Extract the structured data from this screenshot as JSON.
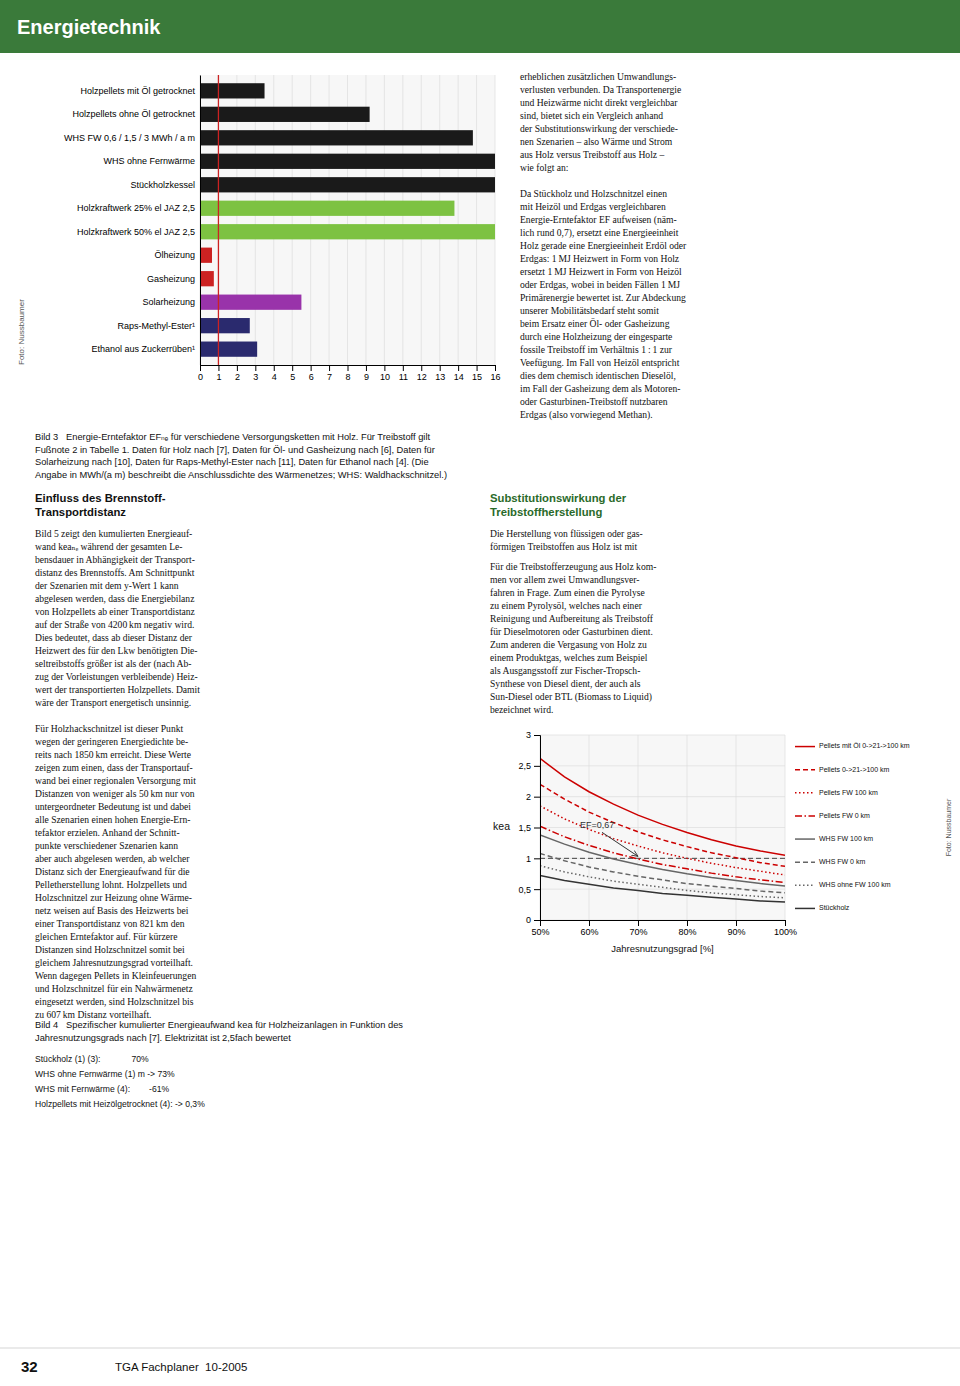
{
  "page": {
    "header": "Energietechnik",
    "page_number": "32",
    "journal": "TGA Fachplaner  10-2005",
    "right_text_top": "erheblichen zusätzlichen Umwandlungs-\nverlusten verbunden. Da Transportenergie\nund Heizwärme nicht direkt vergleichbar\nsind, bietet sich ein Vergleich anhand\nder Substitutionswirkung der verschiede-\nnen Szenarien – also Wärme und Strom\naus Holz versus Treibstoff aus Holz –\nwie folgt an:\n\nDa Stückholz und Holzschnitzel einen\nmit Heizöl und Erdgas vergleichbaren\nEnergie-Erntefaktor EF aufweisen (näm-\nlich rund 0,7), ersetzt eine Energieeinheit\nHolz gerade eine Energieeinheit Erdöl oder\nErdgas: 1 MJ Heizwert in Form von Holz\nersetzt 1 MJ Heizwert in Form von Heizöl\noder Erdgas, wobei in beiden Fällen 1 MJ\nPrimärenergie bewertet ist. Zur Abdeckung\nunserer Mobilitätsbedarf steht somit\nbeim Ersatz einer Öl- oder Gasheizung\ndurch eine Holzheizung der eingesparte\nfossile Treibstoff im Verhältnis 1 : 1 zur\nVeefügung. Im Fall von Heizöl entspricht\ndies dem chemisch identischen Dieselöl,\nim Fall der Gasheizung dem als Motoren-\noder Gasturbinen-Treibstoff nutzbaren\nErdgas (also vorwiegend Methan).",
    "left_col_heading": "Einfluss des Brennstoff-\nTransportdistanz",
    "left_col_text": "Bild 5 zeigt den kumulierten Energieauf-\nwand keaₙₑ während der gesamten Le-\nbensdauer in Abhängigkeit der Transport-\ndistanz des Brennstoffs. Am Schnittpunkt\nder Szenarien mit dem y-Wert 1 kann\nabgelesen werden, dass die Energiebilanz\nvon Holzpellets ab einer Transportdistanz\nauf der Straße von 4200 km negativ wird.\nDies bedeutet, dass ab dieser Distanz der\nHeizwert des für den Lkw benötigten Die-\nseltreibstoffs größer ist als der (nach Ab-\nzug der Vorleistungen verbleibende) Heiz-\nwert der transportierten Holzpellets. Damit\nwäre der Transport energetisch unsinnig.\n\nFür Holzhackschnitzel ist dieser Punkt\nwegen der geringeren Energiedichte be-\nreits nach 1850 km erreicht. Diese Werte\nzeigen zum einen, dass der Transportauf-\nwand bei einer regionalen Versorgung mit\nDistanzen von weniger als 50 km nur von\nuntergeordneter Bedeutung ist und dabei\nalle Szenarien einen hohen Energie-Ern-\ntefaktor erzielen. Anhand der Schnitt-\npunkte verschiedener Szenarien kann\naber auch abgelesen werden, ab welcher\nDistanz sich der Energieaufwand für die\nPelletherstellung lohnt. Holzpellets und\nHolzschnitzel zur Heizung ohne Wärme-\nnetz weisen auf Basis des Heizwerts bei\neiner Transportdistanz von 821 km den\ngleichen Erntefaktor auf. Für kürzere\nDistanzen sind Holzschnitzel somit bei\ngleichem Jahresnutzungsgrad vorteilhaft.\nWenn dagegen Pellets in Kleinfeuerungen\nund Holzschnitzel für ein Nahwärmenetz\neingesetzt werden, sind Holzschnitzel bis\nzu 607 km Distanz vorteilhaft.",
    "right_col_heading": "Substitutionswirkung der\nTreibstoffherstellung",
    "right_col_text_top": "Die Herstellung von flüssigen oder gas-\nförmigen Treibstoffen aus Holz ist mit",
    "right_col_text_bot": "Für die Treibstofferzeugung aus Holz kom-\nmen vor allem zwei Umwandlungsver-\nfahren in Frage. Zum einen die Pyrolyse\nzu einem Pyrolysöl, welches nach einer\nReinigung und Aufbereitung als Treibstoff\nfür Dieselmotoren oder Gasturbinen dient.\nZum anderen die Vergasung von Holz zu\neinem Produktgas, welches zum Beispiel\nals Ausgangsstoff zur Fischer-Tropsch-\nSynthese von Diesel dient, der auch als\nSun-Diesel oder BTL (Biomass to Liquid)\nbezeichnet wird."
  },
  "chart_data": [
    {
      "type": "bar",
      "orientation": "horizontal",
      "caption": "Bild 3   Energie-Erntefaktor EFₙₑ für verschiedene Versorgungsketten mit Holz. Für Treibstoff gilt\nFußnote 2 in Tabelle 1. Daten für Holz nach [7], Daten für Öl- und Gasheizung nach [6], Daten für\nSolarheizung nach [10], Daten für Raps-Methyl-Ester nach [11], Daten für Ethanol nach [4]. (Die\nAngabe in MWh/(a m) beschreibt die Anschlussdichte des Wärmenetzes; WHS: Waldhackschnitzel.)",
      "photo_credit": "Foto: Nussbaumer",
      "categories": [
        "Holzpellets mit Öl getrocknet",
        "Holzpellets ohne Öl getrocknet",
        "WHS FW 0,6 / 1,5 / 3 MWh / a m",
        "WHS ohne Fernwärme",
        "Stückholzkessel",
        "Holzkraftwerk 25% el JAZ 2,5",
        "Holzkraftwerk 50% el JAZ 2,5",
        "Ölheizung",
        "Gasheizung",
        "Solarheizung",
        "Raps-Methyl-Ester¹",
        "Ethanol aus Zuckerrüben¹"
      ],
      "values": [
        3.5,
        9.2,
        14.8,
        16.0,
        16.0,
        13.8,
        16.0,
        0.65,
        0.75,
        5.5,
        2.7,
        3.1
      ],
      "colors": [
        "#1a1a1a",
        "#1a1a1a",
        "#1a1a1a",
        "#1a1a1a",
        "#1a1a1a",
        "#7dc242",
        "#7dc242",
        "#cc2222",
        "#cc2222",
        "#9933aa",
        "#2a2a6e",
        "#2a2a6e"
      ],
      "xlim": [
        0,
        16
      ],
      "xticks": [
        0,
        1,
        2,
        3,
        4,
        5,
        6,
        7,
        8,
        9,
        10,
        11,
        12,
        13,
        14,
        15,
        16
      ],
      "grid": true,
      "reference_lines": [
        {
          "value": 1.0,
          "color": "#cc2222"
        }
      ]
    },
    {
      "type": "line",
      "x_label": "Jahresnutzungsgrad [%]",
      "y_label": "kea",
      "caption": "Bild 4   Spezifischer kumulierter Energieaufwand kea für Holzheizanlagen in Funktion des\nJahresnutzungsgrads nach [7]. Elektrizität ist 2,5fach bewertet",
      "photo_credit": "Foto: Nussbaumer",
      "x": [
        50,
        55,
        60,
        65,
        70,
        75,
        80,
        85,
        90,
        95,
        100
      ],
      "xlim": [
        50,
        100
      ],
      "ylim": [
        0,
        3.0
      ],
      "xticks": [
        {
          "value": 50,
          "label": "50%"
        },
        {
          "value": 60,
          "label": "60%"
        },
        {
          "value": 70,
          "label": "70%"
        },
        {
          "value": 80,
          "label": "80%"
        },
        {
          "value": 90,
          "label": "90%"
        },
        {
          "value": 100,
          "label": "100%"
        }
      ],
      "yticks": [
        0,
        {
          "value": 0.5,
          "label": "0,5"
        },
        1,
        {
          "value": 1.5,
          "label": "1,5"
        },
        2,
        {
          "value": 2.5,
          "label": "2,5"
        },
        3
      ],
      "grid": true,
      "legend": "right",
      "reference_lines": [
        {
          "value": 1.0,
          "line_style": "dashed"
        }
      ],
      "annotations": [
        {
          "text": "EF=0,67",
          "x": 70,
          "y": 1.0
        }
      ],
      "notes": [
        "Stückholz (1) (3):             70%",
        "WHS ohne Fernwärme (1) m -> 73%",
        "WHS mit Fernwärme (4):        -61%",
        "Holzpellets mit Heizölgetrocknet (4): -> 0,3%"
      ],
      "series": [
        {
          "name": "Pellets mit Öl 0->21->100 km",
          "color": "#cc0000",
          "line_style": "solid",
          "values": [
            2.62,
            2.32,
            2.08,
            1.88,
            1.7,
            1.55,
            1.42,
            1.3,
            1.2,
            1.12,
            1.05
          ]
        },
        {
          "name": "Pellets 0->21->100 km",
          "color": "#cc0000",
          "line_style": "dashed",
          "values": [
            2.2,
            1.96,
            1.75,
            1.58,
            1.43,
            1.3,
            1.19,
            1.09,
            1.01,
            0.93,
            0.87
          ]
        },
        {
          "name": "Pellets FW 100 km",
          "color": "#cc0000",
          "line_style": "dotted",
          "values": [
            1.85,
            1.64,
            1.47,
            1.32,
            1.2,
            1.09,
            1.0,
            0.92,
            0.85,
            0.79,
            0.73
          ]
        },
        {
          "name": "Pellets FW 0 km",
          "color": "#cc0000",
          "line_style": "dashdot",
          "values": [
            1.52,
            1.35,
            1.21,
            1.09,
            0.99,
            0.9,
            0.83,
            0.76,
            0.7,
            0.65,
            0.61
          ]
        },
        {
          "name": "WHS FW 100 km",
          "color": "#666666",
          "line_style": "solid",
          "values": [
            1.38,
            1.23,
            1.1,
            0.99,
            0.9,
            0.82,
            0.75,
            0.69,
            0.64,
            0.59,
            0.55
          ]
        },
        {
          "name": "WHS FW 0 km",
          "color": "#666666",
          "line_style": "dashed",
          "values": [
            1.08,
            0.96,
            0.86,
            0.78,
            0.71,
            0.65,
            0.59,
            0.55,
            0.51,
            0.47,
            0.44
          ]
        },
        {
          "name": "WHS ohne FW 100 km",
          "color": "#666666",
          "line_style": "dotted",
          "values": [
            0.88,
            0.78,
            0.7,
            0.63,
            0.58,
            0.53,
            0.48,
            0.44,
            0.41,
            0.38,
            0.36
          ]
        },
        {
          "name": "Stückholz",
          "color": "#333333",
          "line_style": "solid",
          "values": [
            0.72,
            0.64,
            0.58,
            0.52,
            0.48,
            0.43,
            0.4,
            0.37,
            0.34,
            0.31,
            0.29
          ]
        }
      ]
    }
  ]
}
